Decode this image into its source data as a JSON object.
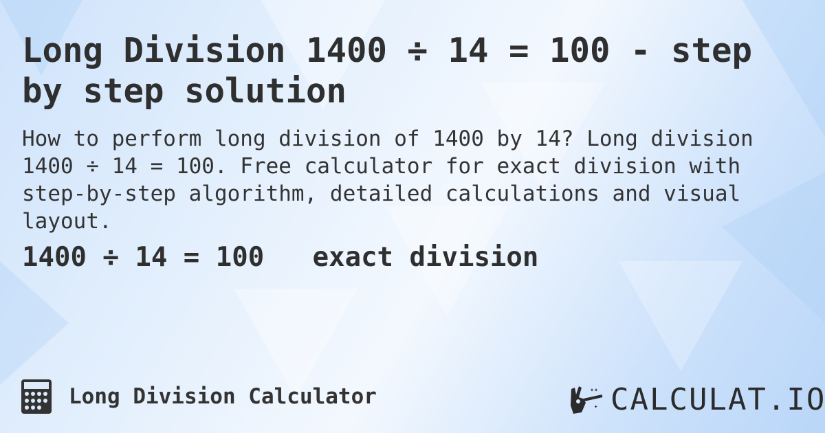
{
  "title": "Long Division 1400 ÷ 14 = 100 - step by step solution",
  "description": "How to perform long division of 1400 by 14? Long division 1400 ÷ 14 = 100. Free calculator for exact division with step-by-step algorithm, detailed calculations and visual layout.",
  "result": "1400 ÷ 14 = 100   exact division",
  "footer": {
    "calculator_name": "Long Division Calculator",
    "calculator_icon": "calculator-icon"
  },
  "logo": {
    "text": "CALCULAT.IO",
    "icon": "magic-wand-hand-icon"
  },
  "colors": {
    "text": "#2f2f2f",
    "background": "#dcebfc"
  }
}
